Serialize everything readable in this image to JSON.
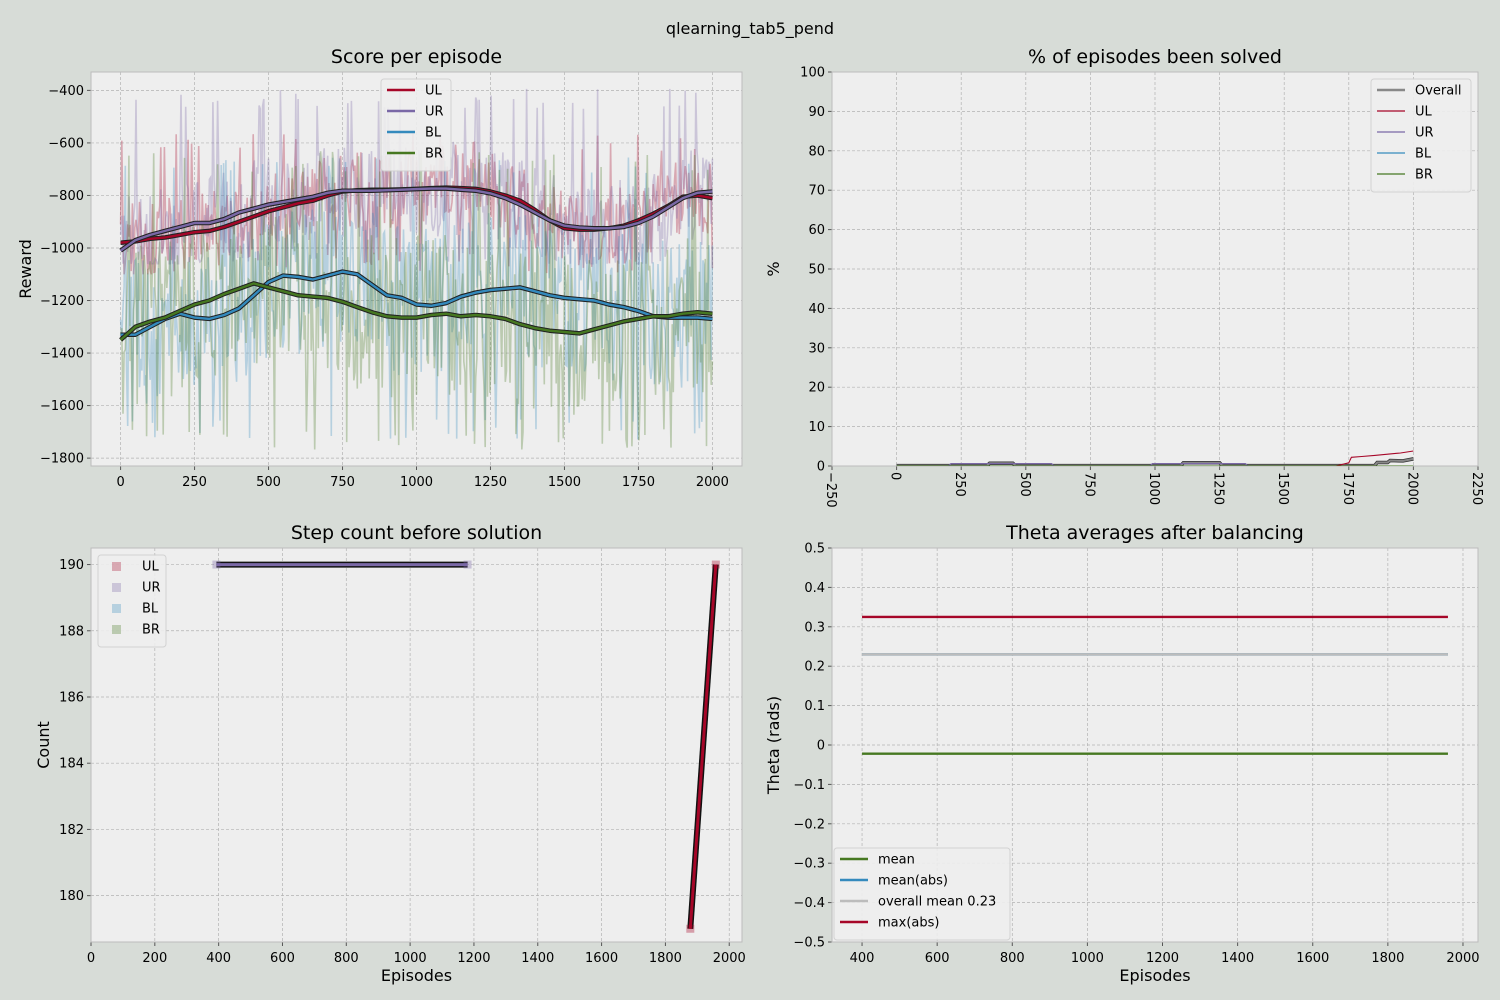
{
  "suptitle": "qlearning_tab5_pend",
  "colors": {
    "figure_bg": "#d7dcd7",
    "axes_bg": "#eeeeee",
    "grid": "#b2b2b2",
    "UL": "#a60628",
    "UR": "#7a68a6",
    "BL": "#348abd",
    "BR": "#467821",
    "overall": "#888888",
    "overall_mean": "#bcbcbc"
  },
  "chart_data": [
    {
      "id": "score",
      "type": "line",
      "title": "Score per episode",
      "xlabel": "",
      "ylabel": "Reward",
      "xlim": [
        -100,
        2100
      ],
      "ylim": [
        -1830,
        -330
      ],
      "xticks": [
        0,
        250,
        500,
        750,
        1000,
        1250,
        1500,
        1750,
        2000
      ],
      "yticks": [
        -1800,
        -1600,
        -1400,
        -1200,
        -1000,
        -800,
        -600,
        -400
      ],
      "grid": true,
      "legend": "top-center",
      "legend_entries": [
        "UL",
        "UR",
        "BL",
        "BR"
      ],
      "series": [
        {
          "name": "UL",
          "color_key": "UL",
          "raw_range": [
            -1100,
            -560
          ],
          "x": [
            0,
            50,
            100,
            150,
            200,
            250,
            300,
            350,
            400,
            450,
            500,
            550,
            600,
            650,
            700,
            750,
            800,
            850,
            900,
            950,
            1000,
            1050,
            1100,
            1150,
            1200,
            1250,
            1300,
            1350,
            1400,
            1450,
            1500,
            1550,
            1600,
            1650,
            1700,
            1750,
            1800,
            1850,
            1900,
            1950,
            2000
          ],
          "avg": [
            -980,
            -975,
            -965,
            -960,
            -950,
            -940,
            -935,
            -920,
            -900,
            -880,
            -860,
            -845,
            -830,
            -820,
            -800,
            -785,
            -780,
            -778,
            -778,
            -777,
            -775,
            -772,
            -770,
            -772,
            -775,
            -785,
            -800,
            -820,
            -855,
            -895,
            -925,
            -930,
            -930,
            -925,
            -915,
            -895,
            -870,
            -840,
            -805,
            -800,
            -810
          ]
        },
        {
          "name": "UR",
          "color_key": "UR",
          "raw_range": [
            -1060,
            -390
          ],
          "x": [
            0,
            50,
            100,
            150,
            200,
            250,
            300,
            350,
            400,
            450,
            500,
            550,
            600,
            650,
            700,
            750,
            800,
            850,
            900,
            950,
            1000,
            1050,
            1100,
            1150,
            1200,
            1250,
            1300,
            1350,
            1400,
            1450,
            1500,
            1550,
            1600,
            1650,
            1700,
            1750,
            1800,
            1850,
            1900,
            1950,
            2000
          ],
          "avg": [
            -1010,
            -970,
            -950,
            -935,
            -920,
            -905,
            -905,
            -890,
            -865,
            -850,
            -835,
            -825,
            -815,
            -805,
            -790,
            -782,
            -782,
            -782,
            -780,
            -778,
            -776,
            -774,
            -774,
            -778,
            -782,
            -792,
            -810,
            -835,
            -865,
            -895,
            -915,
            -922,
            -925,
            -925,
            -920,
            -905,
            -880,
            -845,
            -810,
            -790,
            -785
          ]
        },
        {
          "name": "BL",
          "color_key": "BL",
          "raw_range": [
            -1730,
            -650
          ],
          "x": [
            0,
            50,
            100,
            150,
            200,
            250,
            300,
            350,
            400,
            450,
            500,
            550,
            600,
            650,
            700,
            750,
            800,
            850,
            900,
            950,
            1000,
            1050,
            1100,
            1150,
            1200,
            1250,
            1300,
            1350,
            1400,
            1450,
            1500,
            1550,
            1600,
            1650,
            1700,
            1750,
            1800,
            1850,
            1900,
            1950,
            2000
          ],
          "avg": [
            -1330,
            -1330,
            -1300,
            -1270,
            -1250,
            -1265,
            -1270,
            -1255,
            -1230,
            -1180,
            -1130,
            -1105,
            -1110,
            -1120,
            -1105,
            -1090,
            -1100,
            -1140,
            -1180,
            -1190,
            -1215,
            -1220,
            -1210,
            -1185,
            -1170,
            -1160,
            -1155,
            -1150,
            -1165,
            -1180,
            -1190,
            -1195,
            -1200,
            -1215,
            -1225,
            -1240,
            -1260,
            -1265,
            -1265,
            -1265,
            -1270
          ]
        },
        {
          "name": "BR",
          "color_key": "BR",
          "raw_range": [
            -1770,
            -630
          ],
          "x": [
            0,
            50,
            100,
            150,
            200,
            250,
            300,
            350,
            400,
            450,
            500,
            550,
            600,
            650,
            700,
            750,
            800,
            850,
            900,
            950,
            1000,
            1050,
            1100,
            1150,
            1200,
            1250,
            1300,
            1350,
            1400,
            1450,
            1500,
            1550,
            1600,
            1650,
            1700,
            1750,
            1800,
            1850,
            1900,
            1950,
            2000
          ],
          "avg": [
            -1350,
            -1300,
            -1280,
            -1265,
            -1240,
            -1215,
            -1200,
            -1175,
            -1155,
            -1135,
            -1150,
            -1165,
            -1180,
            -1185,
            -1190,
            -1205,
            -1225,
            -1245,
            -1260,
            -1265,
            -1265,
            -1255,
            -1250,
            -1260,
            -1255,
            -1260,
            -1270,
            -1290,
            -1305,
            -1315,
            -1320,
            -1325,
            -1310,
            -1295,
            -1280,
            -1270,
            -1260,
            -1260,
            -1250,
            -1245,
            -1250
          ]
        }
      ]
    },
    {
      "id": "solved",
      "type": "line",
      "title": "% of episodes been solved",
      "xlabel": "",
      "ylabel": "%",
      "xlim": [
        -250,
        2250
      ],
      "ylim": [
        0,
        100
      ],
      "xticks": [
        -250,
        0,
        250,
        500,
        750,
        1000,
        1250,
        1500,
        1750,
        2000,
        2250
      ],
      "yticks": [
        0,
        10,
        20,
        30,
        40,
        50,
        60,
        70,
        80,
        90,
        100
      ],
      "xtick_rotation": -90,
      "grid": true,
      "legend": "top-right",
      "legend_entries": [
        "Overall",
        "UL",
        "UR",
        "BL",
        "BR"
      ],
      "series": [
        {
          "name": "Overall",
          "color_key": "overall",
          "x": [
            0,
            350,
            360,
            450,
            460,
            1100,
            1110,
            1250,
            1260,
            1850,
            1860,
            1900,
            1910,
            1960,
            2000
          ],
          "y": [
            0.1,
            0.1,
            0.7,
            0.7,
            0.1,
            0.1,
            0.8,
            0.8,
            0.1,
            0.1,
            0.9,
            0.9,
            1.4,
            1.3,
            1.8
          ]
        },
        {
          "name": "UL",
          "color_key": "UL",
          "x": [
            0,
            1700,
            1750,
            1760,
            1800,
            1850,
            1900,
            1950,
            2000
          ],
          "y": [
            0,
            0,
            0.8,
            2.2,
            2.4,
            2.7,
            3.0,
            3.3,
            3.8
          ]
        },
        {
          "name": "UR",
          "color_key": "UR",
          "x": [
            0,
            200,
            210,
            600,
            610,
            980,
            990,
            1350,
            1360,
            2000
          ],
          "y": [
            0,
            0,
            0.6,
            0.6,
            0,
            0,
            0.6,
            0.6,
            0,
            0
          ]
        },
        {
          "name": "BL",
          "color_key": "BL",
          "x": [
            0,
            2000
          ],
          "y": [
            0,
            0
          ]
        },
        {
          "name": "BR",
          "color_key": "BR",
          "x": [
            0,
            2000
          ],
          "y": [
            0,
            0
          ]
        }
      ]
    },
    {
      "id": "steps",
      "type": "scatter",
      "title": "Step count before solution",
      "xlabel": "Episodes",
      "ylabel": "Count",
      "xlim": [
        0,
        2040
      ],
      "ylim": [
        178.6,
        190.5
      ],
      "xticks": [
        0,
        200,
        400,
        600,
        800,
        1000,
        1200,
        1400,
        1600,
        1800,
        2000
      ],
      "yticks": [
        180,
        182,
        184,
        186,
        188,
        190
      ],
      "grid": true,
      "legend": "top-left",
      "legend_entries": [
        "UL",
        "UR",
        "BL",
        "BR"
      ],
      "series": [
        {
          "name": "UL",
          "color_key": "UL",
          "x": [
            1878,
            1958
          ],
          "y": [
            179,
            190
          ]
        },
        {
          "name": "UR",
          "color_key": "UR",
          "x": [
            393,
            1180
          ],
          "y": [
            190,
            190
          ]
        }
      ]
    },
    {
      "id": "theta",
      "type": "line",
      "title": "Theta averages after balancing",
      "xlabel": "Episodes",
      "ylabel": "Theta (rads)",
      "xlim": [
        320,
        2040
      ],
      "ylim": [
        -0.5,
        0.5
      ],
      "xticks": [
        400,
        600,
        800,
        1000,
        1200,
        1400,
        1600,
        1800,
        2000
      ],
      "yticks": [
        -0.5,
        -0.4,
        -0.3,
        -0.2,
        -0.1,
        0.0,
        0.1,
        0.2,
        0.3,
        0.4,
        0.5
      ],
      "grid": true,
      "legend": "bottom-left",
      "legend_entries": [
        "mean",
        "mean(abs)",
        "overall mean 0.23",
        "max(abs)"
      ],
      "series": [
        {
          "name": "mean",
          "color_key": "BR",
          "x": [
            400,
            1960
          ],
          "y": [
            -0.022,
            -0.022
          ]
        },
        {
          "name": "mean(abs)",
          "color_key": "BL",
          "x": [
            400,
            1960
          ],
          "y": [
            0.23,
            0.23
          ]
        },
        {
          "name": "overall mean 0.23",
          "color_key": "overall_mean",
          "x": [
            400,
            1960
          ],
          "y": [
            0.23,
            0.23
          ]
        },
        {
          "name": "max(abs)",
          "color_key": "UL",
          "x": [
            400,
            1960
          ],
          "y": [
            0.325,
            0.325
          ]
        }
      ]
    }
  ]
}
